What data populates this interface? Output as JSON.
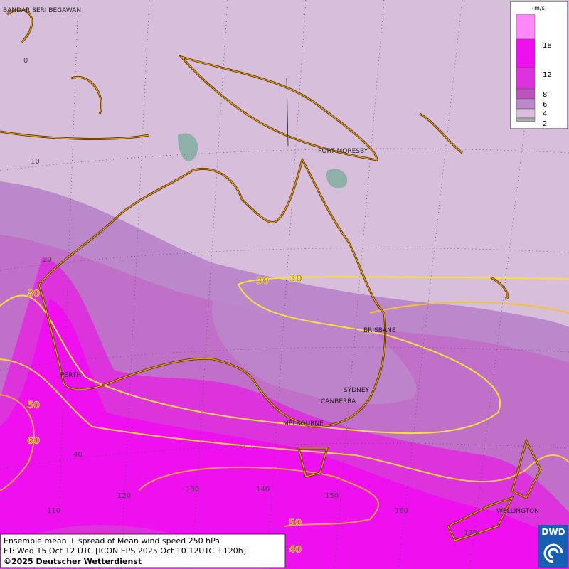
{
  "map": {
    "cities": [
      "BANDAR SERI BEGAWAN",
      "PORT MORESBY",
      "BRISBANE",
      "PERTH",
      "SYDNEY",
      "CANBERRA",
      "MELBOURNE",
      "WELLINGTON"
    ],
    "latitude_labels": [
      "0",
      "10",
      "20",
      "40"
    ],
    "longitude_labels": [
      "110",
      "120",
      "130",
      "140",
      "150",
      "160",
      "170"
    ],
    "contour_labels": [
      "30",
      "30",
      "30",
      "50",
      "60",
      "50",
      "40"
    ]
  },
  "legend": {
    "unit": "(m/s)",
    "ticks": [
      "18",
      "12",
      "8",
      "6",
      "4",
      "2"
    ]
  },
  "caption": {
    "line1": "Ensemble mean + spread of Mean wind speed 250 hPa",
    "line2": "FT: Wed 15 Oct 12 UTC [ICON EPS 2025 Oct 10 12UTC +120h]",
    "copyright": "©2025 Deutscher Wetterdienst"
  },
  "logo": "DWD"
}
